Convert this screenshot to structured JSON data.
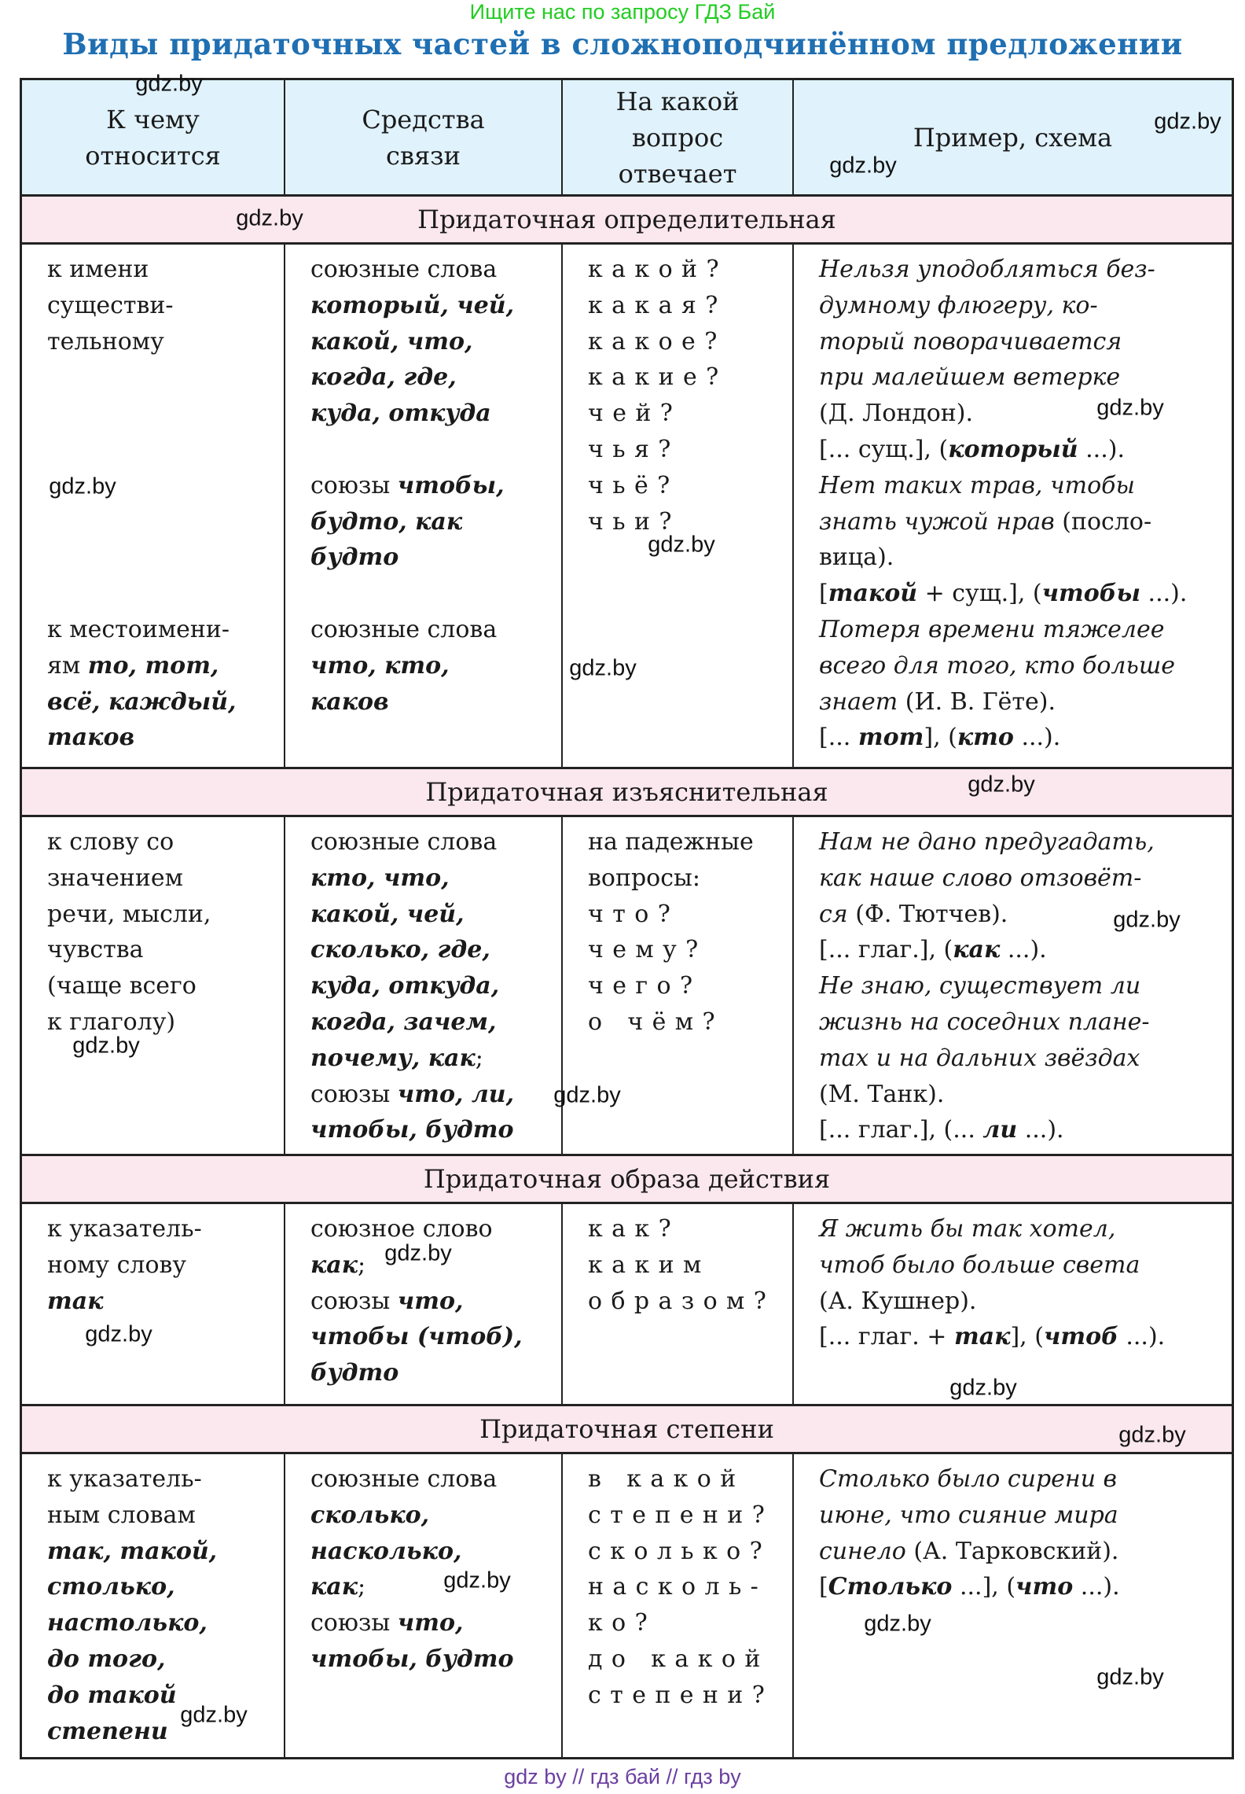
{
  "promo": "Ищите нас по запросу ГДЗ Бай",
  "title": "Виды придаточных частей в сложноподчинённом предложении",
  "header": [
    [
      "К чему",
      "относится"
    ],
    [
      "Средства",
      "связи"
    ],
    [
      "На какой",
      "вопрос",
      "отвечает"
    ],
    [
      "Пример, схема"
    ]
  ],
  "colors": {
    "title": "#1f6fb2",
    "header_bg": "#e0f2fc",
    "band_bg": "#fbe7ee",
    "promo": "#22cc22",
    "footer": "#6b3fa0"
  },
  "sections": [
    {
      "band": "Придаточная определительная",
      "cells": [
        [
          [
            [
              "к имени",
              "n"
            ]
          ],
          [
            [
              "существи-",
              "n"
            ]
          ],
          [
            [
              "тельному",
              "n"
            ]
          ],
          [],
          [],
          [],
          [],
          [],
          [],
          [],
          [
            [
              "к местоимени-",
              "n"
            ]
          ],
          [
            [
              "ям ",
              "n"
            ],
            [
              "то, тот,",
              "bi"
            ]
          ],
          [
            [
              "всё, каждый,",
              "bi"
            ]
          ],
          [
            [
              "таков",
              "bi"
            ]
          ]
        ],
        [
          [
            [
              "союзные слова",
              "n"
            ]
          ],
          [
            [
              "который, чей,",
              "bi"
            ]
          ],
          [
            [
              "какой, что,",
              "bi"
            ]
          ],
          [
            [
              "когда, где,",
              "bi"
            ]
          ],
          [
            [
              "куда, откуда",
              "bi"
            ]
          ],
          [],
          [
            [
              "союзы ",
              "n"
            ],
            [
              "чтобы,",
              "bi"
            ]
          ],
          [
            [
              "будто, как",
              "bi"
            ]
          ],
          [
            [
              "будто",
              "bi"
            ]
          ],
          [],
          [
            [
              "союзные слова",
              "n"
            ]
          ],
          [
            [
              "что, кто,",
              "bi"
            ]
          ],
          [
            [
              "каков",
              "bi"
            ]
          ]
        ],
        [
          [
            [
              "какой?",
              "sp"
            ]
          ],
          [
            [
              "какая?",
              "sp"
            ]
          ],
          [
            [
              "какое?",
              "sp"
            ]
          ],
          [
            [
              "какие?",
              "sp"
            ]
          ],
          [
            [
              "чей?",
              "sp"
            ]
          ],
          [
            [
              "чья?",
              "sp"
            ]
          ],
          [
            [
              "чьё?",
              "sp"
            ]
          ],
          [
            [
              "чьи?",
              "sp"
            ]
          ]
        ],
        [
          [
            [
              "Нельзя уподобляться без-",
              "i"
            ]
          ],
          [
            [
              "думному флюгеру, ко-",
              "i"
            ]
          ],
          [
            [
              "торый поворачивается",
              "i"
            ]
          ],
          [
            [
              "при малейшем ветерке",
              "i"
            ]
          ],
          [
            [
              "(Д. Лондон).",
              "n"
            ]
          ],
          [
            [
              "[... сущ.], (",
              "n"
            ],
            [
              "который",
              "bi"
            ],
            [
              " ...).",
              "n"
            ]
          ],
          [
            [
              "Нет таких трав, чтобы",
              "i"
            ]
          ],
          [
            [
              "знать чужой нрав",
              "i"
            ],
            [
              " (посло-",
              "n"
            ]
          ],
          [
            [
              "вица).",
              "n"
            ]
          ],
          [
            [
              "[",
              "n"
            ],
            [
              "такой",
              "bi"
            ],
            [
              " + сущ.], (",
              "n"
            ],
            [
              "чтобы",
              "bi"
            ],
            [
              " ...).",
              "n"
            ]
          ],
          [
            [
              "Потеря времени тяжелее",
              "i"
            ]
          ],
          [
            [
              "всего для того, кто больше",
              "i"
            ]
          ],
          [
            [
              "знает",
              "i"
            ],
            [
              " (И. В. Гёте).",
              "n"
            ]
          ],
          [
            [
              "[... ",
              "n"
            ],
            [
              "тот",
              "bi"
            ],
            [
              "], (",
              "n"
            ],
            [
              "кто",
              "bi"
            ],
            [
              " ...).",
              "n"
            ]
          ]
        ]
      ]
    },
    {
      "band": "Придаточная изъяснительная",
      "cells": [
        [
          [
            [
              "к слову со",
              "n"
            ]
          ],
          [
            [
              "значением",
              "n"
            ]
          ],
          [
            [
              "речи, мысли,",
              "n"
            ]
          ],
          [
            [
              "чувства",
              "n"
            ]
          ],
          [
            [
              "(чаще всего",
              "n"
            ]
          ],
          [
            [
              "к глаголу)",
              "n"
            ]
          ]
        ],
        [
          [
            [
              "союзные слова",
              "n"
            ]
          ],
          [
            [
              "кто, что,",
              "bi"
            ]
          ],
          [
            [
              "какой, чей,",
              "bi"
            ]
          ],
          [
            [
              "сколько, где,",
              "bi"
            ]
          ],
          [
            [
              "куда, откуда,",
              "bi"
            ]
          ],
          [
            [
              "когда, зачем,",
              "bi"
            ]
          ],
          [
            [
              "почему, как",
              "bi"
            ],
            [
              ";",
              "n"
            ]
          ],
          [
            [
              "союзы ",
              "n"
            ],
            [
              "что, ли,",
              "bi"
            ]
          ],
          [
            [
              "чтобы, будто",
              "bi"
            ]
          ]
        ],
        [
          [
            [
              "на падежные",
              "n"
            ]
          ],
          [
            [
              "вопросы:",
              "n"
            ]
          ],
          [
            [
              "что?",
              "sp"
            ]
          ],
          [
            [
              "чему?",
              "sp"
            ]
          ],
          [
            [
              "чего?",
              "sp"
            ]
          ],
          [
            [
              "о чём?",
              "sp"
            ]
          ]
        ],
        [
          [
            [
              "Нам не дано предугадать,",
              "i"
            ]
          ],
          [
            [
              "как наше слово отзовёт-",
              "i"
            ]
          ],
          [
            [
              "ся",
              "i"
            ],
            [
              " (Ф. Тютчев).",
              "n"
            ]
          ],
          [
            [
              "[... глаг.], (",
              "n"
            ],
            [
              "как",
              "bi"
            ],
            [
              " ...).",
              "n"
            ]
          ],
          [
            [
              "Не знаю, существует ли",
              "i"
            ]
          ],
          [
            [
              "жизнь на соседних плане-",
              "i"
            ]
          ],
          [
            [
              "тах и на дальних звёздах",
              "i"
            ]
          ],
          [
            [
              "(М. Танк).",
              "n"
            ]
          ],
          [
            [
              "[... глаг.], (... ",
              "n"
            ],
            [
              "ли",
              "bi"
            ],
            [
              " ...).",
              "n"
            ]
          ]
        ]
      ]
    },
    {
      "band": "Придаточная образа действия",
      "cells": [
        [
          [
            [
              "к указатель-",
              "n"
            ]
          ],
          [
            [
              "ному слову",
              "n"
            ]
          ],
          [
            [
              "так",
              "bi"
            ]
          ]
        ],
        [
          [
            [
              "союзное слово",
              "n"
            ]
          ],
          [
            [
              "как",
              "bi"
            ],
            [
              ";",
              "n"
            ]
          ],
          [
            [
              "союзы ",
              "n"
            ],
            [
              "что,",
              "bi"
            ]
          ],
          [
            [
              "чтобы (чтоб),",
              "bi"
            ]
          ],
          [
            [
              "будто",
              "bi"
            ]
          ]
        ],
        [
          [
            [
              "как?",
              "sp"
            ]
          ],
          [
            [
              "каким",
              "sp"
            ]
          ],
          [
            [
              "образом?",
              "sp"
            ]
          ]
        ],
        [
          [
            [
              "Я жить бы так хотел,",
              "i"
            ]
          ],
          [
            [
              "чтоб было больше света",
              "i"
            ]
          ],
          [
            [
              "(А. Кушнер).",
              "n"
            ]
          ],
          [
            [
              "[... глаг. + ",
              "n"
            ],
            [
              "так",
              "bi"
            ],
            [
              "], (",
              "n"
            ],
            [
              "чтоб",
              "bi"
            ],
            [
              " ...).",
              "n"
            ]
          ]
        ]
      ]
    },
    {
      "band": "Придаточная степени",
      "cells": [
        [
          [
            [
              "к указатель-",
              "n"
            ]
          ],
          [
            [
              "ным словам",
              "n"
            ]
          ],
          [
            [
              "так, такой,",
              "bi"
            ]
          ],
          [
            [
              "столько,",
              "bi"
            ]
          ],
          [
            [
              "настолько,",
              "bi"
            ]
          ],
          [
            [
              "до того,",
              "bi"
            ]
          ],
          [
            [
              "до такой",
              "bi"
            ]
          ],
          [
            [
              "степени",
              "bi"
            ]
          ]
        ],
        [
          [
            [
              "союзные слова",
              "n"
            ]
          ],
          [
            [
              "сколько,",
              "bi"
            ]
          ],
          [
            [
              "насколько,",
              "bi"
            ]
          ],
          [
            [
              "как",
              "bi"
            ],
            [
              ";",
              "n"
            ]
          ],
          [
            [
              "союзы ",
              "n"
            ],
            [
              "что,",
              "bi"
            ]
          ],
          [
            [
              "чтобы, будто",
              "bi"
            ]
          ]
        ],
        [
          [
            [
              "в какой",
              "sp"
            ]
          ],
          [
            [
              "степени?",
              "sp"
            ]
          ],
          [
            [
              "сколько?",
              "sp"
            ]
          ],
          [
            [
              "насколь-",
              "sp"
            ]
          ],
          [
            [
              "ко?",
              "sp"
            ]
          ],
          [
            [
              "до какой",
              "sp"
            ]
          ],
          [
            [
              "степени?",
              "sp"
            ]
          ]
        ],
        [
          [
            [
              "Столько было сирени в",
              "i"
            ]
          ],
          [
            [
              "июне, что сияние мира",
              "i"
            ]
          ],
          [
            [
              "синело",
              "i"
            ],
            [
              " (А. Тарковский).",
              "n"
            ]
          ],
          [
            [
              "[",
              "n"
            ],
            [
              "Столько",
              "bi"
            ],
            [
              " ...], (",
              "n"
            ],
            [
              "что",
              "bi"
            ],
            [
              " ...).",
              "n"
            ]
          ]
        ]
      ]
    }
  ],
  "watermark": "gdz.by",
  "footer": "gdz by  //  гдз бай  //  гдз by"
}
